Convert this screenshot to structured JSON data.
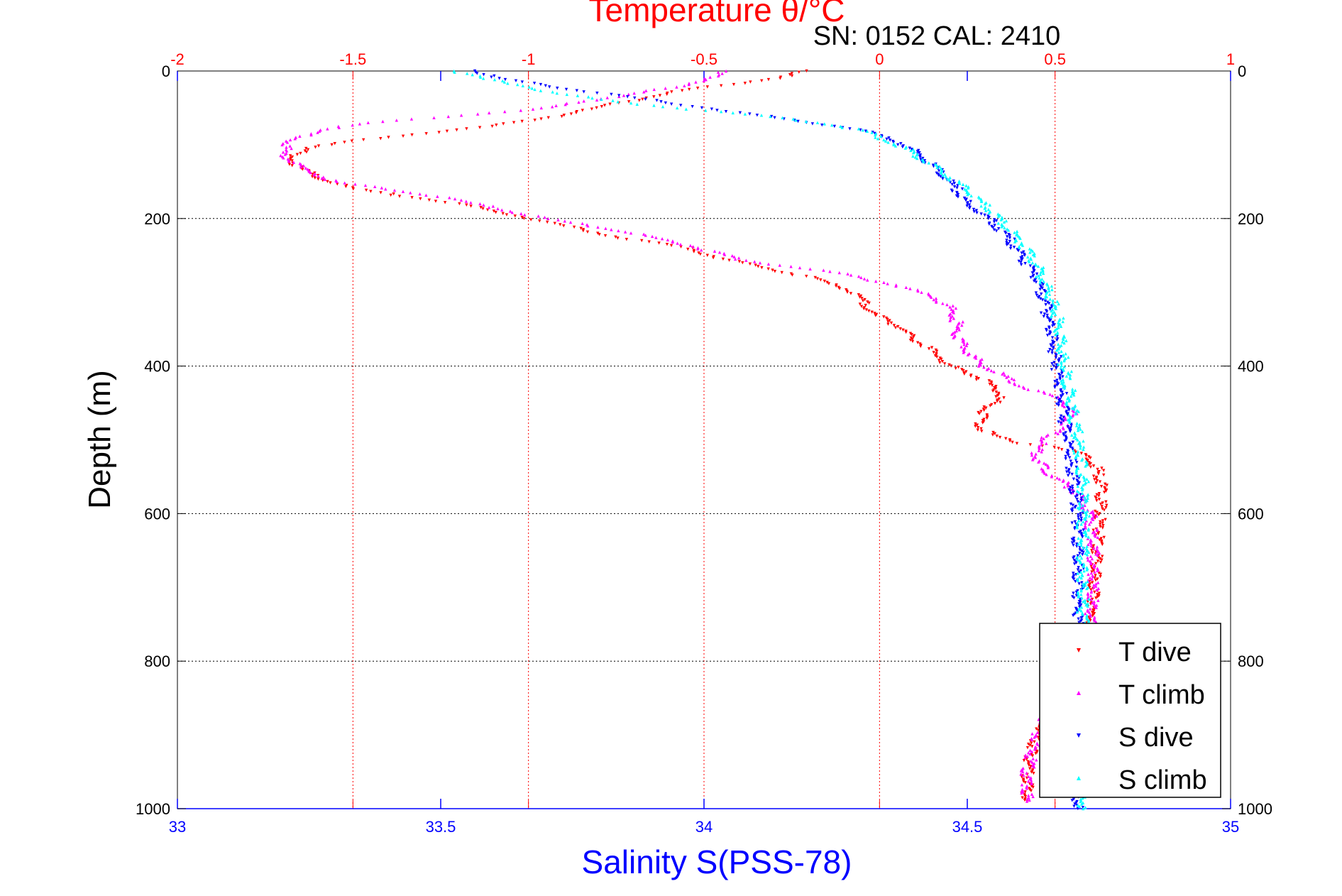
{
  "chart_data": {
    "type": "scatter",
    "title": "Temperature θ/°C",
    "subtitle": "SN: 0152  CAL: 2410",
    "xlabel_top": "Temperature θ/°C",
    "xlabel_bottom": "Salinity S(PSS-78)",
    "ylabel": "Depth (m)",
    "x_top": {
      "lim": [
        -2,
        1
      ],
      "ticks": [
        -2,
        -1.5,
        -1,
        -0.5,
        0,
        0.5,
        1
      ],
      "tick_labels": [
        "-2",
        "-1.5",
        "-1",
        "-0.5",
        "0",
        "0.5",
        "1"
      ]
    },
    "x_bottom": {
      "lim": [
        33,
        35
      ],
      "ticks": [
        33,
        33.5,
        34,
        34.5,
        35
      ],
      "tick_labels": [
        "33",
        "33.5",
        "34",
        "34.5",
        "35"
      ]
    },
    "y": {
      "lim": [
        0,
        1000
      ],
      "reversed": true,
      "ticks": [
        0,
        200,
        400,
        600,
        800,
        1000
      ],
      "tick_labels": [
        "0",
        "200",
        "400",
        "600",
        "800",
        "1000"
      ]
    },
    "grid": true,
    "legend_position": "bottom-right",
    "series": [
      {
        "name": "T dive",
        "axis": "top",
        "marker": "down-triangle",
        "color": "#ff0000",
        "points": [
          [
            -0.2,
            0
          ],
          [
            -0.3,
            10
          ],
          [
            -0.45,
            20
          ],
          [
            -0.6,
            30
          ],
          [
            -0.75,
            45
          ],
          [
            -0.9,
            60
          ],
          [
            -1.1,
            75
          ],
          [
            -1.3,
            85
          ],
          [
            -1.5,
            95
          ],
          [
            -1.62,
            105
          ],
          [
            -1.68,
            115
          ],
          [
            -1.66,
            130
          ],
          [
            -1.6,
            145
          ],
          [
            -1.5,
            160
          ],
          [
            -1.35,
            170
          ],
          [
            -1.2,
            180
          ],
          [
            -1.05,
            195
          ],
          [
            -0.9,
            210
          ],
          [
            -0.75,
            225
          ],
          [
            -0.55,
            240
          ],
          [
            -0.45,
            255
          ],
          [
            -0.35,
            265
          ],
          [
            -0.2,
            280
          ],
          [
            -0.1,
            295
          ],
          [
            -0.05,
            310
          ],
          [
            -0.02,
            330
          ],
          [
            0.05,
            345
          ],
          [
            0.1,
            365
          ],
          [
            0.15,
            380
          ],
          [
            0.2,
            400
          ],
          [
            0.3,
            420
          ],
          [
            0.35,
            440
          ],
          [
            0.3,
            460
          ],
          [
            0.28,
            480
          ],
          [
            0.32,
            495
          ],
          [
            0.4,
            505
          ],
          [
            0.5,
            510
          ],
          [
            0.58,
            520
          ],
          [
            0.62,
            540
          ],
          [
            0.63,
            560
          ],
          [
            0.63,
            600
          ],
          [
            0.62,
            650
          ],
          [
            0.61,
            700
          ],
          [
            0.6,
            750
          ],
          [
            0.58,
            800
          ],
          [
            0.5,
            850
          ],
          [
            0.45,
            900
          ],
          [
            0.43,
            930
          ],
          [
            0.42,
            960
          ],
          [
            0.42,
            990
          ]
        ]
      },
      {
        "name": "T climb",
        "axis": "top",
        "marker": "up-triangle",
        "color": "#ff00ff",
        "points": [
          [
            -0.43,
            0
          ],
          [
            -0.5,
            10
          ],
          [
            -0.55,
            20
          ],
          [
            -0.7,
            30
          ],
          [
            -0.95,
            50
          ],
          [
            -1.2,
            60
          ],
          [
            -1.45,
            70
          ],
          [
            -1.6,
            80
          ],
          [
            -1.68,
            95
          ],
          [
            -1.7,
            110
          ],
          [
            -1.65,
            130
          ],
          [
            -1.55,
            150
          ],
          [
            -1.4,
            160
          ],
          [
            -1.25,
            170
          ],
          [
            -1.1,
            185
          ],
          [
            -0.95,
            200
          ],
          [
            -0.75,
            215
          ],
          [
            -0.55,
            235
          ],
          [
            -0.4,
            255
          ],
          [
            -0.25,
            265
          ],
          [
            -0.1,
            275
          ],
          [
            0.05,
            290
          ],
          [
            0.15,
            305
          ],
          [
            0.2,
            320
          ],
          [
            0.22,
            340
          ],
          [
            0.22,
            360
          ],
          [
            0.25,
            380
          ],
          [
            0.3,
            400
          ],
          [
            0.38,
            420
          ],
          [
            0.45,
            435
          ],
          [
            0.52,
            445
          ],
          [
            0.55,
            460
          ],
          [
            0.53,
            480
          ],
          [
            0.48,
            495
          ],
          [
            0.45,
            510
          ],
          [
            0.45,
            530
          ],
          [
            0.5,
            550
          ],
          [
            0.56,
            570
          ],
          [
            0.6,
            600
          ],
          [
            0.61,
            650
          ],
          [
            0.61,
            700
          ],
          [
            0.6,
            750
          ],
          [
            0.58,
            800
          ],
          [
            0.5,
            850
          ],
          [
            0.45,
            900
          ],
          [
            0.42,
            950
          ],
          [
            0.42,
            990
          ]
        ]
      },
      {
        "name": "S dive",
        "axis": "bottom",
        "marker": "down-triangle",
        "color": "#0000ff",
        "points": [
          [
            33.57,
            0
          ],
          [
            33.6,
            10
          ],
          [
            33.7,
            20
          ],
          [
            33.8,
            30
          ],
          [
            33.9,
            40
          ],
          [
            34.0,
            50
          ],
          [
            34.1,
            60
          ],
          [
            34.2,
            70
          ],
          [
            34.3,
            80
          ],
          [
            34.38,
            100
          ],
          [
            34.42,
            120
          ],
          [
            34.45,
            140
          ],
          [
            34.48,
            160
          ],
          [
            34.5,
            180
          ],
          [
            34.54,
            200
          ],
          [
            34.57,
            220
          ],
          [
            34.6,
            250
          ],
          [
            34.63,
            280
          ],
          [
            34.65,
            320
          ],
          [
            34.66,
            360
          ],
          [
            34.67,
            400
          ],
          [
            34.68,
            450
          ],
          [
            34.69,
            500
          ],
          [
            34.7,
            550
          ],
          [
            34.71,
            600
          ],
          [
            34.71,
            700
          ],
          [
            34.71,
            800
          ],
          [
            34.71,
            900
          ],
          [
            34.71,
            1000
          ]
        ]
      },
      {
        "name": "S climb",
        "axis": "bottom",
        "marker": "up-triangle",
        "color": "#00ffff",
        "points": [
          [
            33.53,
            0
          ],
          [
            33.58,
            10
          ],
          [
            33.66,
            20
          ],
          [
            33.72,
            30
          ],
          [
            33.82,
            40
          ],
          [
            33.95,
            50
          ],
          [
            34.1,
            60
          ],
          [
            34.22,
            70
          ],
          [
            34.3,
            80
          ],
          [
            34.33,
            90
          ],
          [
            34.37,
            100
          ],
          [
            34.42,
            120
          ],
          [
            34.46,
            140
          ],
          [
            34.5,
            160
          ],
          [
            34.53,
            180
          ],
          [
            34.56,
            200
          ],
          [
            34.6,
            230
          ],
          [
            34.63,
            260
          ],
          [
            34.65,
            290
          ],
          [
            34.67,
            330
          ],
          [
            34.68,
            380
          ],
          [
            34.69,
            420
          ],
          [
            34.7,
            460
          ],
          [
            34.71,
            500
          ],
          [
            34.72,
            550
          ],
          [
            34.72,
            600
          ],
          [
            34.72,
            700
          ],
          [
            34.72,
            800
          ],
          [
            34.72,
            900
          ],
          [
            34.72,
            1000
          ]
        ]
      }
    ]
  }
}
